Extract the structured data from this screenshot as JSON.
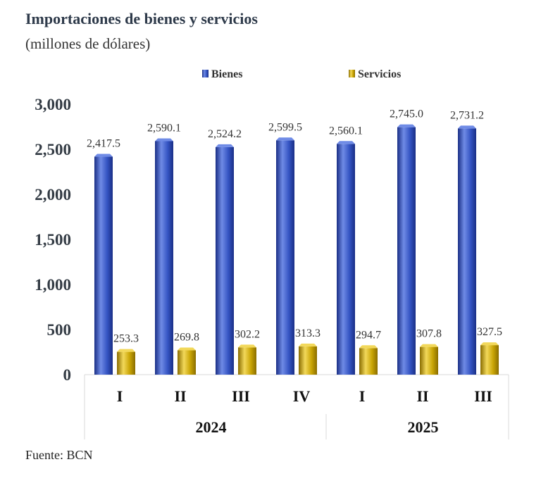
{
  "header": {
    "title": "Importaciones de bienes y servicios",
    "subtitle": "(millones de dólares)"
  },
  "footer": {
    "source": "Fuente: BCN"
  },
  "colors": {
    "bienes_light": "#6f8be6",
    "bienes_mid": "#3454c2",
    "bienes_dark": "#1a2f86",
    "servicios_light": "#f2d85a",
    "servicios_mid": "#c9a404",
    "servicios_dark": "#8a6d00",
    "axis": "#d9d9d9"
  },
  "chart_data": {
    "type": "bar",
    "title": "Importaciones de bienes y servicios",
    "ylabel": "(millones de dólares)",
    "xlabel": "",
    "ylim": [
      0,
      3000
    ],
    "yticks": [
      "0",
      "500",
      "1,000",
      "1,500",
      "2,000",
      "2,500",
      "3,000"
    ],
    "ytick_values": [
      0,
      500,
      1000,
      1500,
      2000,
      2500,
      3000
    ],
    "categories": [
      "I",
      "II",
      "III",
      "IV",
      "I",
      "II",
      "III"
    ],
    "groups": [
      {
        "label": "2024",
        "count": 4
      },
      {
        "label": "2025",
        "count": 3
      }
    ],
    "legend_position": "top",
    "series": [
      {
        "name": "Bienes",
        "values": [
          2417.5,
          2590.1,
          2524.2,
          2599.5,
          2560.1,
          2745.0,
          2731.2
        ],
        "labels": [
          "2,417.5",
          "2,590.1",
          "2,524.2",
          "2,599.5",
          "2,560.1",
          "2,745.0",
          "2,731.2"
        ]
      },
      {
        "name": "Servicios",
        "values": [
          253.3,
          269.8,
          302.2,
          313.3,
          294.7,
          307.8,
          327.5
        ],
        "labels": [
          "253.3",
          "269.8",
          "302.2",
          "313.3",
          "294.7",
          "307.8",
          "327.5"
        ]
      }
    ]
  }
}
